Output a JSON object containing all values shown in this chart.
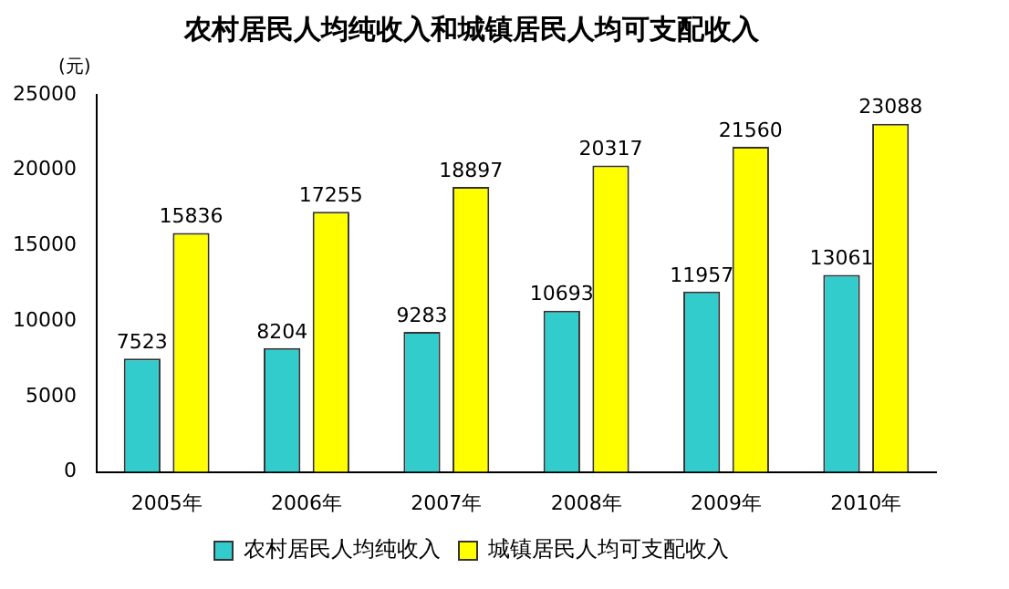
{
  "chart_data": {
    "type": "bar",
    "title": "农村居民人均纯收入和城镇居民人均可支配收入",
    "ylabel": "(元)",
    "categories": [
      "2005年",
      "2006年",
      "2007年",
      "2008年",
      "2009年",
      "2010年"
    ],
    "series": [
      {
        "name": "农村居民人均纯收入",
        "color": "#33cccc",
        "values": [
          7523,
          8204,
          9283,
          10693,
          11957,
          13061
        ]
      },
      {
        "name": "城镇居民人均可支配收入",
        "color": "#ffff00",
        "values": [
          15836,
          17255,
          18897,
          20317,
          21560,
          23088
        ]
      }
    ],
    "ylim": [
      0,
      25000
    ],
    "yticks": [
      0,
      5000,
      10000,
      15000,
      20000,
      25000
    ],
    "grid": false,
    "legend": "bottom",
    "data_labels": true
  }
}
